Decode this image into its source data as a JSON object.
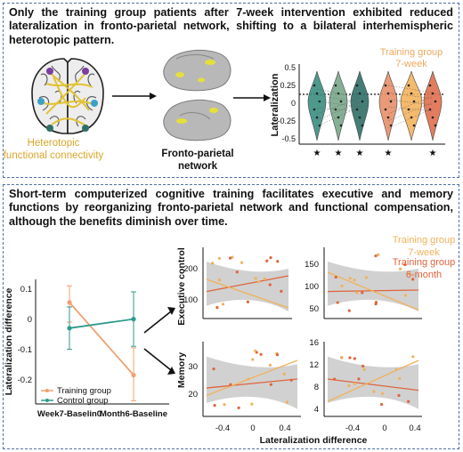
{
  "top_panel": {
    "heading": "Only the training group patients after 7-week intervention exhibited reduced lateralization in fronto-parietal network, shifting to a bilateral interhemispheric heterotopic pattern.",
    "brain_caption_line1": "Heterotopic",
    "brain_caption_line2": "functional connectivity",
    "network_caption_line1": "Fronto-parietal",
    "network_caption_line2": "network",
    "violin": {
      "ylabel": "Lateralization",
      "yticks": [
        "0.5",
        "0.25",
        "0",
        "-0.25",
        "-0.5"
      ],
      "group_label_line1": "Training group",
      "group_label_line2": "7-week",
      "colors": [
        "#3a8f80",
        "#7aa88a",
        "#2f6f68",
        "#e8906a",
        "#f3b35e",
        "#e0704e"
      ],
      "stars": [
        "★",
        "★",
        "★",
        "★",
        "★"
      ]
    }
  },
  "bottom_panel": {
    "heading": "Short-term computerized cognitive training facilitates executive and memory functions by reorganizing fronto-parietal network and functional compensation, although the benefits diminish over time.",
    "line_chart": {
      "ylabel": "Lateralization difference",
      "yticks": [
        "0.1",
        "0",
        "-0.1",
        "-0.2"
      ],
      "categories": [
        "Week7-Baselin0",
        "Month6-Baseline"
      ],
      "legend": [
        "Training group",
        "Control group"
      ]
    },
    "legend_right": {
      "line1": "Training group",
      "line2": "7-week",
      "line3": "Training group",
      "line4": "6-month"
    },
    "scatter": {
      "xlabel": "Lateralization difference",
      "ylabel_top": "Executive control",
      "ylabel_bottom": "Memory",
      "xticks_left": [
        "-0.4",
        "0",
        "0.4"
      ],
      "xticks_right": [
        "-0.4",
        "0",
        "0.4"
      ],
      "yticks_tl": [
        "200",
        "100"
      ],
      "yticks_tr": [
        "150",
        "100",
        "50"
      ],
      "yticks_bl": [
        "30",
        "20"
      ],
      "yticks_br": [
        "16",
        "12",
        "8",
        "4"
      ]
    }
  },
  "chart_data": {
    "type": "line",
    "categories": [
      "Week7-Baselin0",
      "Month6-Baseline"
    ],
    "ylabel": "Lateralization difference",
    "ylim": [
      -0.25,
      0.12
    ],
    "series": [
      {
        "name": "Training group",
        "color": "#f0a070",
        "values": [
          0.065,
          -0.175
        ],
        "error": [
          [
            0.0,
            0.12
          ],
          [
            -0.26,
            -0.085
          ]
        ]
      },
      {
        "name": "Control group",
        "color": "#2f9a8f",
        "values": [
          -0.02,
          0.01
        ],
        "error": [
          [
            -0.09,
            0.05
          ],
          [
            -0.08,
            0.1
          ]
        ]
      }
    ]
  }
}
